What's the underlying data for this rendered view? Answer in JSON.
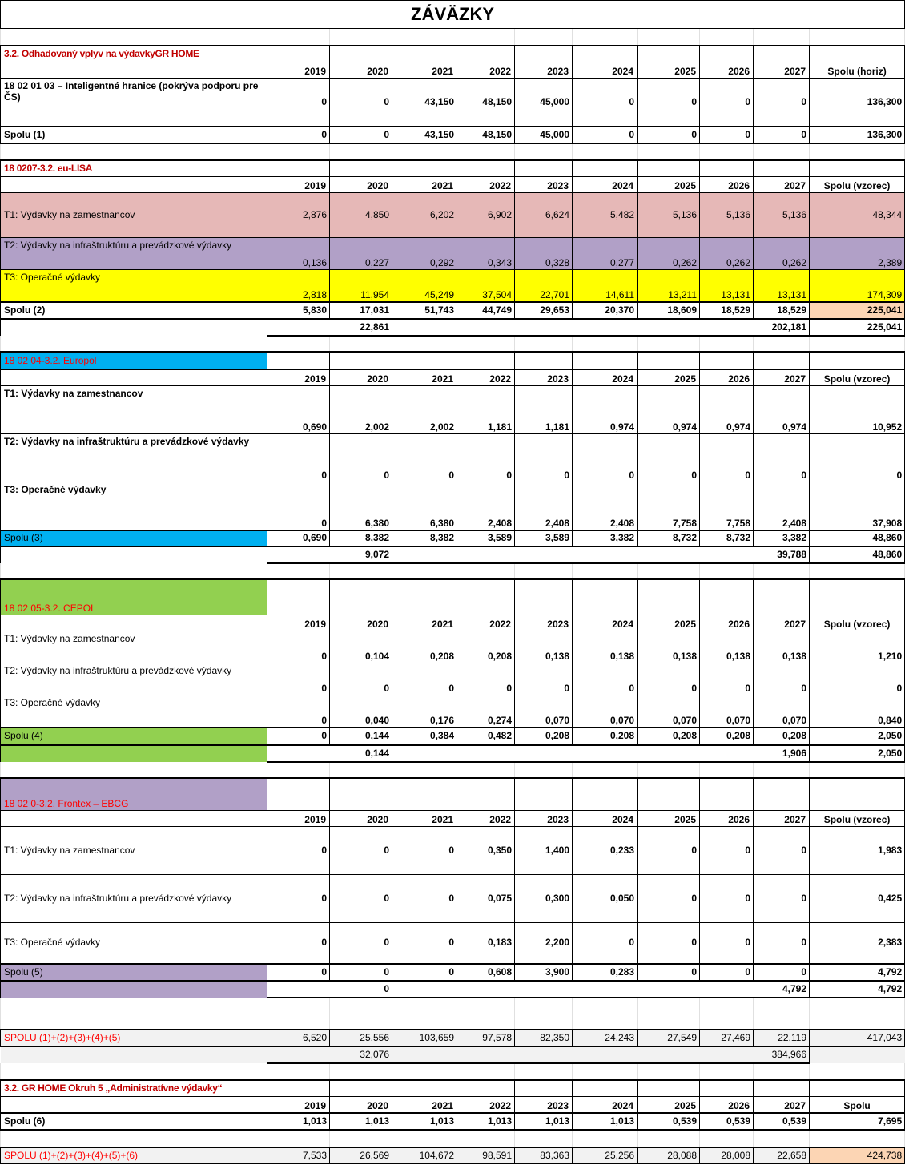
{
  "title": "ZÁVÄZKY",
  "years": [
    "2019",
    "2020",
    "2021",
    "2022",
    "2023",
    "2024",
    "2025",
    "2026",
    "2027"
  ],
  "colors": {
    "t1_pink": "#e6b8b7",
    "t2_purple": "#b1a0c7",
    "t3_yellow": "#ffff00",
    "total_peach": "#fcd5b4",
    "europol_blue": "#00b0f0",
    "cepol_green": "#92d050",
    "frontex_purple": "#b1a0c7",
    "grand_gray": "#f2f2f2",
    "header_red": "#ff0000",
    "header_dark_red": "#c00000"
  },
  "sections": [
    {
      "header": "3.2. Odhadovaný vplyv na výdavkyGR HOME",
      "total_header": "Spolu (horiz)",
      "rows": [
        {
          "label": "18 02 01 03 – Inteligentné hranice (pokrýva podporu pre ČS)",
          "values": [
            "0",
            "0",
            "43,150",
            "48,150",
            "45,000",
            "0",
            "0",
            "0",
            "0"
          ],
          "total": "136,300"
        }
      ],
      "spolu": {
        "label": "Spolu (1)",
        "values": [
          "0",
          "0",
          "43,150",
          "48,150",
          "45,000",
          "0",
          "0",
          "0",
          "0"
        ],
        "total": "136,300"
      }
    },
    {
      "header": "18 0207-3.2. eu-LISA",
      "total_header": "Spolu (vzorec)",
      "rows": [
        {
          "label": "T1: Výdavky na zamestnancov",
          "values": [
            "2,876",
            "4,850",
            "6,202",
            "6,902",
            "6,624",
            "5,482",
            "5,136",
            "5,136",
            "5,136"
          ],
          "total": "48,344"
        },
        {
          "label": "T2: Výdavky na infraštruktúru a prevádzkové výdavky",
          "values": [
            "0,136",
            "0,227",
            "0,292",
            "0,343",
            "0,328",
            "0,277",
            "0,262",
            "0,262",
            "0,262"
          ],
          "total": "2,389"
        },
        {
          "label": "T3: Operačné výdavky",
          "values": [
            "2,818",
            "11,954",
            "45,249",
            "37,504",
            "22,701",
            "14,611",
            "13,211",
            "13,131",
            "13,131"
          ],
          "total": "174,309"
        }
      ],
      "spolu": {
        "label": "Spolu (2)",
        "values": [
          "5,830",
          "17,031",
          "51,743",
          "44,749",
          "29,653",
          "20,370",
          "18,609",
          "18,529",
          "18,529"
        ],
        "total": "225,041"
      },
      "split": {
        "first": "22,861",
        "rest": "202,181",
        "total": "225,041"
      }
    },
    {
      "header": "18 02 04-3.2. Europol",
      "total_header": "Spolu (vzorec)",
      "rows": [
        {
          "label": "T1: Výdavky na zamestnancov",
          "values": [
            "0,690",
            "2,002",
            "2,002",
            "1,181",
            "1,181",
            "0,974",
            "0,974",
            "0,974",
            "0,974"
          ],
          "total": "10,952"
        },
        {
          "label": "T2: Výdavky na infraštruktúru a prevádzkové výdavky",
          "values": [
            "0",
            "0",
            "0",
            "0",
            "0",
            "0",
            "0",
            "0",
            "0"
          ],
          "total": "0"
        },
        {
          "label": "T3: Operačné výdavky",
          "values": [
            "0",
            "6,380",
            "6,380",
            "2,408",
            "2,408",
            "2,408",
            "7,758",
            "7,758",
            "2,408"
          ],
          "total": "37,908"
        }
      ],
      "spolu": {
        "label": "Spolu (3)",
        "values": [
          "0,690",
          "8,382",
          "8,382",
          "3,589",
          "3,589",
          "3,382",
          "8,732",
          "8,732",
          "3,382"
        ],
        "total": "48,860"
      },
      "split": {
        "first": "9,072",
        "rest": "39,788",
        "total": "48,860"
      }
    },
    {
      "header": "18 02 05-3.2. CEPOL",
      "total_header": "Spolu (vzorec)",
      "rows": [
        {
          "label": "T1: Výdavky na zamestnancov",
          "values": [
            "0",
            "0,104",
            "0,208",
            "0,208",
            "0,138",
            "0,138",
            "0,138",
            "0,138",
            "0,138"
          ],
          "total": "1,210"
        },
        {
          "label": "T2: Výdavky na infraštruktúru a prevádzkové výdavky",
          "values": [
            "0",
            "0",
            "0",
            "0",
            "0",
            "0",
            "0",
            "0",
            "0"
          ],
          "total": "0"
        },
        {
          "label": "T3: Operačné výdavky",
          "values": [
            "0",
            "0,040",
            "0,176",
            "0,274",
            "0,070",
            "0,070",
            "0,070",
            "0,070",
            "0,070"
          ],
          "total": "0,840"
        }
      ],
      "spolu": {
        "label": "Spolu (4)",
        "values": [
          "0",
          "0,144",
          "0,384",
          "0,482",
          "0,208",
          "0,208",
          "0,208",
          "0,208",
          "0,208"
        ],
        "total": "2,050"
      },
      "split": {
        "first": "0,144",
        "rest": "1,906",
        "total": "2,050"
      }
    },
    {
      "header": "18 02 0-3.2. Frontex – EBCG",
      "total_header": "Spolu (vzorec)",
      "rows": [
        {
          "label": "T1: Výdavky na zamestnancov",
          "values": [
            "0",
            "0",
            "0",
            "0,350",
            "1,400",
            "0,233",
            "0",
            "0",
            "0"
          ],
          "total": "1,983"
        },
        {
          "label": "T2: Výdavky na infraštruktúru a prevádzkové výdavky",
          "values": [
            "0",
            "0",
            "0",
            "0,075",
            "0,300",
            "0,050",
            "0",
            "0",
            "0"
          ],
          "total": "0,425"
        },
        {
          "label": "T3: Operačné výdavky",
          "values": [
            "0",
            "0",
            "0",
            "0,183",
            "2,200",
            "0",
            "0",
            "0",
            "0"
          ],
          "total": "2,383"
        }
      ],
      "spolu": {
        "label": "Spolu (5)",
        "values": [
          "0",
          "0",
          "0",
          "0,608",
          "3,900",
          "0,283",
          "0",
          "0",
          "0"
        ],
        "total": "4,792"
      },
      "split": {
        "first": "0",
        "rest": "4,792",
        "total": "4,792"
      }
    }
  ],
  "grand_total_5": {
    "label": "SPOLU (1)+(2)+(3)+(4)+(5)",
    "values": [
      "6,520",
      "25,556",
      "103,659",
      "97,578",
      "82,350",
      "24,243",
      "27,549",
      "27,469",
      "22,119"
    ],
    "total": "417,043",
    "split": {
      "first": "32,076",
      "rest": "384,966"
    }
  },
  "section6": {
    "header": "3.2. GR HOME Okruh 5 „Administratívne výdavky“",
    "total_header": "Spolu",
    "spolu": {
      "label": "Spolu (6)",
      "values": [
        "1,013",
        "1,013",
        "1,013",
        "1,013",
        "1,013",
        "1,013",
        "0,539",
        "0,539",
        "0,539"
      ],
      "total": "7,695"
    }
  },
  "grand_total_6": {
    "label": "SPOLU (1)+(2)+(3)+(4)+(5)+(6)",
    "values": [
      "7,533",
      "26,569",
      "104,672",
      "98,591",
      "83,363",
      "25,256",
      "28,088",
      "28,008",
      "22,658"
    ],
    "total": "424,738"
  }
}
